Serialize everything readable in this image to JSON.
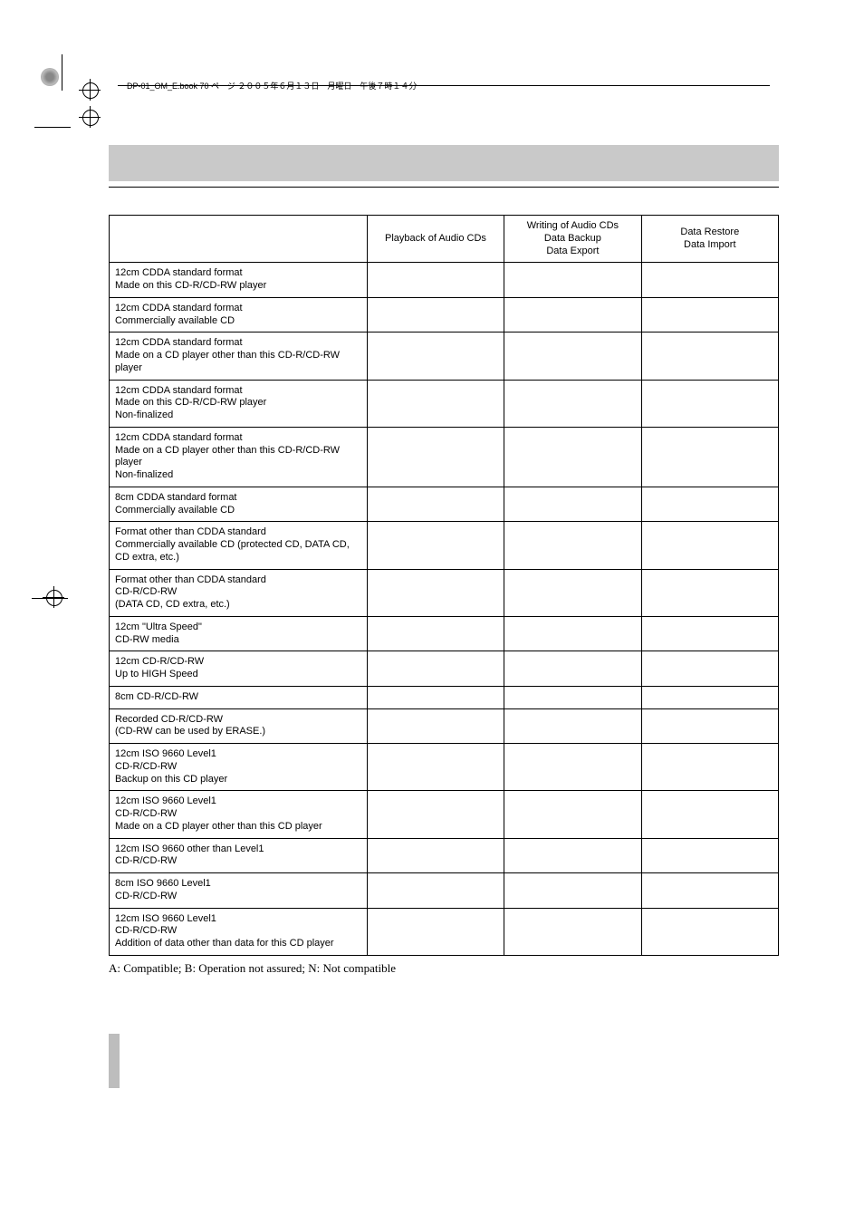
{
  "book_title": "DP-01_OM_E.book  70 ページ  ２００５年６月１３日　月曜日　午後７時１４分",
  "table": {
    "headers": [
      "",
      "Playback of Audio CDs",
      "Writing of Audio CDs\nData Backup\nData Export",
      "Data Restore\nData Import"
    ],
    "rows": [
      [
        "12cm CDDA standard format\nMade on this CD-R/CD-RW player",
        "",
        "",
        ""
      ],
      [
        "12cm CDDA standard format\nCommercially available CD",
        "",
        "",
        ""
      ],
      [
        "12cm CDDA standard format\nMade on a CD player other than this CD-R/CD-RW player",
        "",
        "",
        ""
      ],
      [
        "12cm CDDA standard format\nMade on this CD-R/CD-RW player\nNon-finalized",
        "",
        "",
        ""
      ],
      [
        "12cm CDDA standard format\nMade on a CD player other than this CD-R/CD-RW player\nNon-finalized",
        "",
        "",
        ""
      ],
      [
        "8cm CDDA standard format\nCommercially available CD",
        "",
        "",
        ""
      ],
      [
        "Format other than CDDA standard\nCommercially available CD (protected CD, DATA CD, CD extra, etc.)",
        "",
        "",
        ""
      ],
      [
        "Format other than CDDA standard\nCD-R/CD-RW\n(DATA CD, CD extra, etc.)",
        "",
        "",
        ""
      ],
      [
        "12cm \"Ultra Speed\"\nCD-RW media",
        "",
        "",
        ""
      ],
      [
        "12cm CD-R/CD-RW\nUp to HIGH Speed",
        "",
        "",
        ""
      ],
      [
        "8cm CD-R/CD-RW",
        "",
        "",
        ""
      ],
      [
        "Recorded CD-R/CD-RW\n(CD-RW can be used by ERASE.)",
        "",
        "",
        ""
      ],
      [
        "12cm ISO 9660 Level1\nCD-R/CD-RW\nBackup on this CD player",
        "",
        "",
        ""
      ],
      [
        "12cm ISO 9660 Level1\nCD-R/CD-RW\nMade on a CD player other than this CD player",
        "",
        "",
        ""
      ],
      [
        "12cm ISO 9660 other than Level1\nCD-R/CD-RW",
        "",
        "",
        ""
      ],
      [
        "8cm ISO 9660 Level1\nCD-R/CD-RW",
        "",
        "",
        ""
      ],
      [
        "12cm ISO 9660 Level1\nCD-R/CD-RW\nAddition of data other than data for this CD player",
        "",
        "",
        ""
      ]
    ]
  },
  "caption": "A: Compatible; B: Operation not assured; N: Not compatible"
}
